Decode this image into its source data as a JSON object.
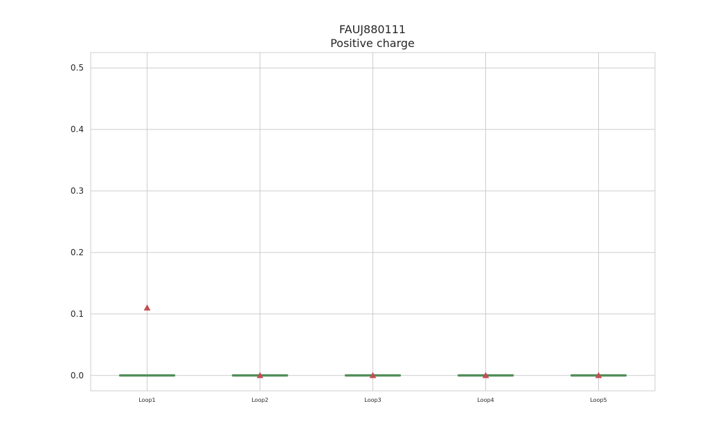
{
  "chart_data": {
    "type": "box",
    "title": "FAUJ880111",
    "subtitle": "Positive charge",
    "xlabel": "",
    "ylabel": "",
    "categories": [
      "Loop1",
      "Loop2",
      "Loop3",
      "Loop4",
      "Loop5"
    ],
    "ylim": [
      -0.025,
      0.525
    ],
    "yticks": [
      0.0,
      0.1,
      0.2,
      0.3,
      0.4,
      0.5
    ],
    "ytick_labels": [
      "0.0",
      "0.1",
      "0.2",
      "0.3",
      "0.4",
      "0.5"
    ],
    "grid": true,
    "legend": "none",
    "series": [
      {
        "boxes": [
          {
            "category": "Loop1",
            "whisker_low": 0.0,
            "q1": 0.0,
            "median": 0.0,
            "q3": 0.0,
            "whisker_high": 0.0,
            "mean": 0.11
          },
          {
            "category": "Loop2",
            "whisker_low": 0.0,
            "q1": 0.0,
            "median": 0.0,
            "q3": 0.0,
            "whisker_high": 0.0,
            "mean": 0.0
          },
          {
            "category": "Loop3",
            "whisker_low": 0.0,
            "q1": 0.0,
            "median": 0.0,
            "q3": 0.0,
            "whisker_high": 0.0,
            "mean": 0.0
          },
          {
            "category": "Loop4",
            "whisker_low": 0.0,
            "q1": 0.0,
            "median": 0.0,
            "q3": 0.0,
            "whisker_high": 0.0,
            "mean": 0.0
          },
          {
            "category": "Loop5",
            "whisker_low": 0.0,
            "q1": 0.0,
            "median": 0.0,
            "q3": 0.0,
            "whisker_high": 0.0,
            "mean": 0.0
          }
        ]
      }
    ],
    "colors": {
      "box": "#6a9e6f",
      "median": "#4a8a55",
      "mean_marker": "#c44e52",
      "grid": "#cccccc",
      "text": "#262626",
      "background": "#ffffff"
    }
  }
}
